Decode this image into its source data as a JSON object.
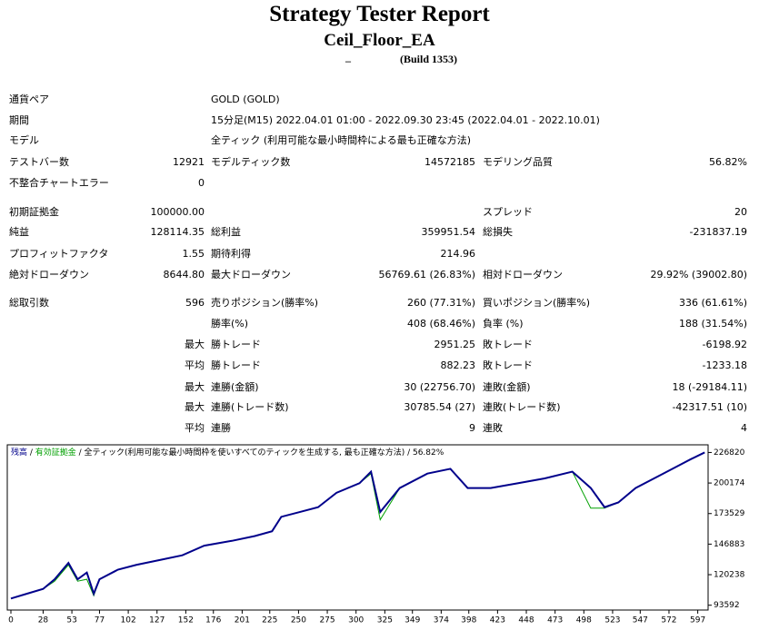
{
  "header": {
    "title": "Strategy Tester Report",
    "ea": "Ceil_Floor_EA",
    "account": "_",
    "build": "(Build 1353)"
  },
  "table": {
    "rows": [
      {
        "label1": "通貨ペア",
        "detail": "GOLD (GOLD)"
      },
      {
        "label1": "期間",
        "detail": "15分足(M15) 2022.04.01 01:00 - 2022.09.30 23:45 (2022.04.01 - 2022.10.01)"
      },
      {
        "label1": "モデル",
        "detail": "全ティック (利用可能な最小時間枠による最も正確な方法)"
      },
      {
        "label1": "テストバー数",
        "value1": "12921",
        "label2": "モデルティック数",
        "value2": "14572185",
        "label3": "モデリング品質",
        "value3": "56.82%"
      },
      {
        "label1": "不整合チャートエラー",
        "value1": "0"
      },
      {
        "label1": "初期証拠金",
        "value1": "100000.00",
        "label3": "スプレッド",
        "value3": "20"
      },
      {
        "label1": "純益",
        "value1": "128114.35",
        "label2": "総利益",
        "value2": "359951.54",
        "label3": "総損失",
        "value3": "-231837.19"
      },
      {
        "label1": "プロフィットファクタ",
        "value1": "1.55",
        "label2": "期待利得",
        "value2": "214.96"
      },
      {
        "label1": "絶対ドローダウン",
        "value1": "8644.80",
        "label2": "最大ドローダウン",
        "value2": "56769.61 (26.83%)",
        "label3": "相対ドローダウン",
        "value3": "29.92% (39002.80)"
      },
      {
        "label1": "総取引数",
        "value1": "596",
        "label2": "売りポジション(勝率%)",
        "value2": "260 (77.31%)",
        "label3": "買いポジション(勝率%)",
        "value3": "336 (61.61%)"
      },
      {
        "label2": "勝率(%)",
        "value2": "408 (68.46%)",
        "label3": "負率 (%)",
        "value3": "188 (31.54%)"
      },
      {
        "value1": "最大",
        "label2": "勝トレード",
        "value2": "2951.25",
        "label3": "敗トレード",
        "value3": "-6198.92"
      },
      {
        "value1": "平均",
        "label2": "勝トレード",
        "value2": "882.23",
        "label3": "敗トレード",
        "value3": "-1233.18"
      },
      {
        "value1": "最大",
        "label2": "連勝(金額)",
        "value2": "30 (22756.70)",
        "label3": "連敗(金額)",
        "value3": "18 (-29184.11)"
      },
      {
        "value1": "最大",
        "label2": "連勝(トレード数)",
        "value2": "30785.54 (27)",
        "label3": "連敗(トレード数)",
        "value3": "-42317.51 (10)"
      },
      {
        "value1": "平均",
        "label2": "連勝",
        "value2": "9",
        "label3": "連敗",
        "value3": "4"
      }
    ]
  },
  "chart_data": {
    "type": "line",
    "legend": {
      "balance": "残高",
      "separator": " / ",
      "equity": "有効証拠金",
      "model": " / 全ティック(利用可能な最小時間枠を使いすべてのティックを生成する, 最も正確な方法) / 56.82%"
    },
    "x": [
      0,
      14,
      28,
      38,
      50,
      58,
      66,
      72,
      77,
      93,
      109,
      129,
      149,
      168,
      192,
      212,
      227,
      235,
      251,
      267,
      283,
      303,
      313,
      321,
      338,
      362,
      382,
      397,
      417,
      441,
      464,
      488,
      504,
      516,
      528,
      543,
      567,
      591,
      603
    ],
    "series": [
      {
        "name": "残高",
        "color": "#00008b",
        "values": [
          99458,
          103648,
          107838,
          116218,
          130464,
          116218,
          122084,
          103648,
          116218,
          124598,
          128788,
          132978,
          137168,
          145548,
          149738,
          153928,
          158118,
          170688,
          174878,
          179068,
          191638,
          200018,
          210074,
          174878,
          195828,
          208398,
          212588,
          195828,
          195828,
          200018,
          204208,
          210074,
          195828,
          179068,
          183258,
          195828,
          208398,
          220968,
          226820
        ]
      },
      {
        "name": "有効証拠金",
        "color": "#00a000",
        "values": [
          99458,
          103648,
          107838,
          114542,
          128788,
          114542,
          116218,
          101972,
          116218,
          124598,
          128788,
          132978,
          137168,
          145548,
          149738,
          153928,
          158118,
          170688,
          174878,
          179068,
          191638,
          200018,
          208398,
          168174,
          195828,
          208398,
          212588,
          195828,
          195828,
          200018,
          204208,
          210074,
          178230,
          178230,
          183258,
          195828,
          208398,
          220968,
          226820
        ]
      }
    ],
    "xlim": [
      0,
      606
    ],
    "xticks": [
      0,
      28,
      53,
      77,
      102,
      127,
      152,
      176,
      201,
      225,
      250,
      275,
      300,
      325,
      349,
      374,
      398,
      423,
      448,
      473,
      498,
      523,
      547,
      572,
      597
    ],
    "ylim": [
      89400,
      233500
    ],
    "yticks": [
      93592,
      120238,
      146883,
      173529,
      200174,
      226820
    ],
    "grid": false
  }
}
